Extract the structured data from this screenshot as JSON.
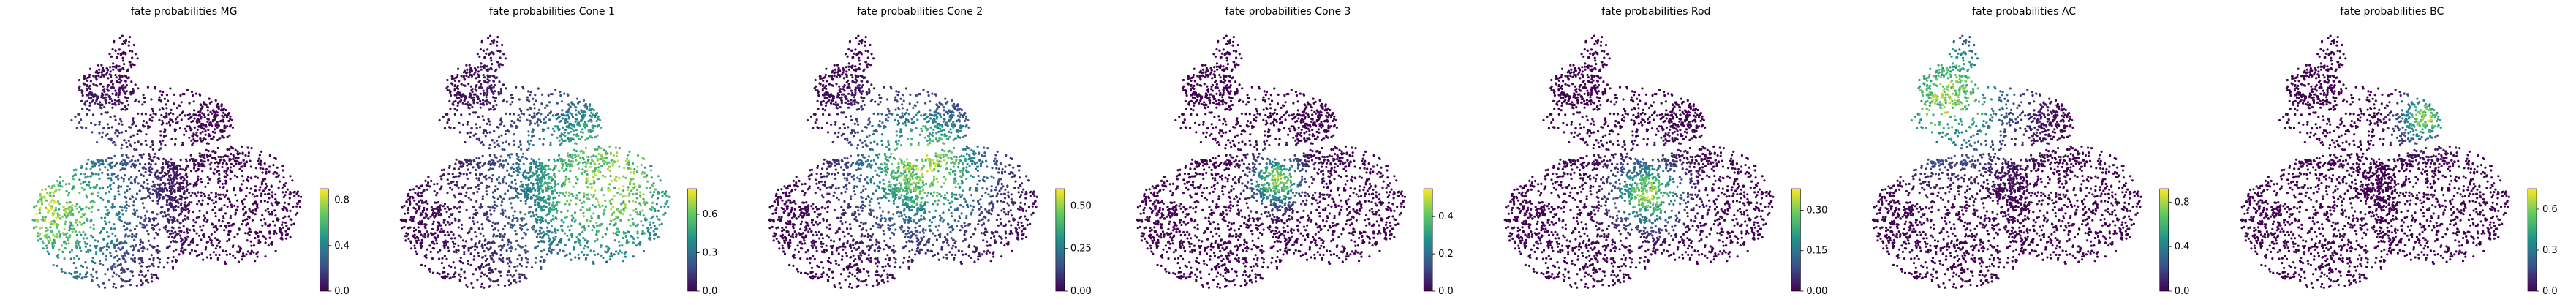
{
  "figure": {
    "background": "#ffffff",
    "colormap": [
      "#440154",
      "#3b528b",
      "#21918c",
      "#5ec962",
      "#fde725"
    ]
  },
  "chart_data": [
    {
      "type": "scatter",
      "title": "fate probabilities MG",
      "focus": [
        0.1,
        0.68
      ],
      "spread": 0.2,
      "colorbar": {
        "min": 0.0,
        "max": 0.9,
        "ticks": [
          0.0,
          0.4,
          0.8
        ]
      }
    },
    {
      "type": "scatter",
      "title": "fate probabilities Cone 1",
      "focus": [
        0.76,
        0.58
      ],
      "spread": 0.24,
      "colorbar": {
        "min": 0.0,
        "max": 0.8,
        "ticks": [
          0.0,
          0.3,
          0.6
        ]
      }
    },
    {
      "type": "scatter",
      "title": "fate probabilities Cone 2",
      "focus": [
        0.58,
        0.52
      ],
      "spread": 0.16,
      "colorbar": {
        "min": 0.0,
        "max": 0.6,
        "ticks": [
          0.0,
          0.25,
          0.5
        ]
      }
    },
    {
      "type": "scatter",
      "title": "fate probabilities Cone 3",
      "focus": [
        0.53,
        0.57
      ],
      "spread": 0.06,
      "colorbar": {
        "min": 0.0,
        "max": 0.55,
        "ticks": [
          0.0,
          0.2,
          0.4
        ]
      }
    },
    {
      "type": "scatter",
      "title": "fate probabilities Rod",
      "focus": [
        0.54,
        0.62
      ],
      "spread": 0.08,
      "colorbar": {
        "min": 0.0,
        "max": 0.38,
        "ticks": [
          0.0,
          0.15,
          0.3
        ]
      }
    },
    {
      "type": "scatter",
      "title": "fate probabilities AC",
      "focus": [
        0.3,
        0.26
      ],
      "spread": 0.15,
      "colorbar": {
        "min": 0.0,
        "max": 0.92,
        "ticks": [
          0.0,
          0.4,
          0.8
        ]
      }
    },
    {
      "type": "scatter",
      "title": "fate probabilities BC",
      "focus": [
        0.68,
        0.34
      ],
      "spread": 0.06,
      "colorbar": {
        "min": 0.0,
        "max": 0.75,
        "ticks": [
          0.0,
          0.3,
          0.6
        ]
      }
    }
  ]
}
